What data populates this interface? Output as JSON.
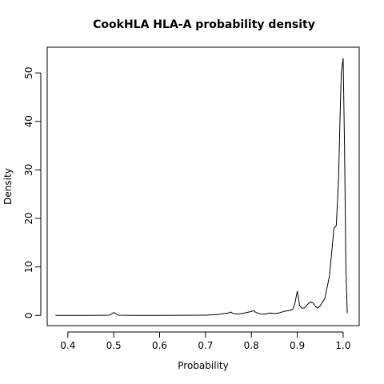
{
  "chart_data": {
    "type": "line",
    "title": "CookHLA HLA-A probability density",
    "xlabel": "Probability",
    "ylabel": "Density",
    "xlim": [
      0.355,
      1.035
    ],
    "ylim": [
      -2.1,
      55.3
    ],
    "x_ticks": [
      0.4,
      0.5,
      0.6,
      0.7,
      0.8,
      0.9,
      1.0
    ],
    "x_tick_labels": [
      "0.4",
      "0.5",
      "0.6",
      "0.7",
      "0.8",
      "0.9",
      "1.0"
    ],
    "y_ticks": [
      0,
      10,
      20,
      30,
      40,
      50
    ],
    "y_tick_labels": [
      "0",
      "10",
      "20",
      "30",
      "40",
      "50"
    ],
    "grid": false,
    "series": [
      {
        "x": [
          0.373,
          0.45,
          0.49,
          0.495,
          0.5,
          0.505,
          0.51,
          0.55,
          0.6,
          0.65,
          0.7,
          0.73,
          0.74,
          0.75,
          0.755,
          0.76,
          0.77,
          0.78,
          0.79,
          0.8,
          0.805,
          0.81,
          0.82,
          0.83,
          0.84,
          0.85,
          0.86,
          0.87,
          0.88,
          0.89,
          0.895,
          0.9,
          0.903,
          0.905,
          0.91,
          0.915,
          0.92,
          0.925,
          0.93,
          0.935,
          0.94,
          0.945,
          0.95,
          0.96,
          0.97,
          0.98,
          0.985,
          0.99,
          0.993,
          0.996,
          1.0,
          1.003,
          1.006,
          1.009
        ],
        "y": [
          0,
          0,
          0.05,
          0.3,
          0.6,
          0.3,
          0.05,
          0,
          0,
          0.02,
          0.05,
          0.2,
          0.4,
          0.5,
          0.7,
          0.4,
          0.3,
          0.4,
          0.6,
          0.8,
          1.0,
          0.6,
          0.3,
          0.3,
          0.5,
          0.4,
          0.5,
          0.8,
          1.0,
          1.2,
          2.5,
          5.0,
          3.5,
          2.0,
          1.5,
          1.5,
          2.0,
          2.5,
          2.8,
          2.5,
          1.8,
          1.5,
          2.0,
          3.5,
          8.0,
          18.0,
          18.5,
          28.0,
          40.0,
          50.0,
          53.0,
          35.0,
          10.0,
          0.5
        ]
      }
    ]
  }
}
